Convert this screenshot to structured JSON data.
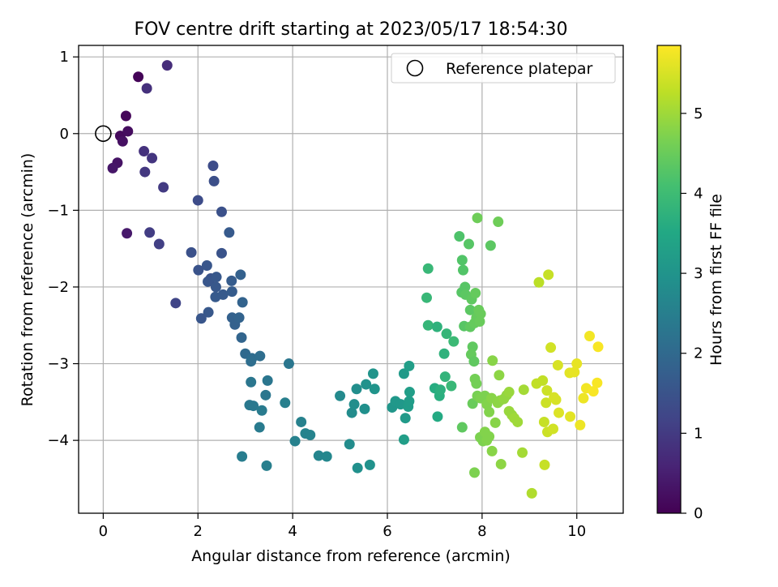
{
  "chart_data": {
    "type": "scatter",
    "title": "FOV centre drift starting at 2023/05/17 18:54:30",
    "xlabel": "Angular distance from reference (arcmin)",
    "ylabel": "Rotation from reference (arcmin)",
    "xlim": [
      -0.52,
      10.98
    ],
    "ylim": [
      -4.95,
      1.15
    ],
    "x_ticks": [
      0,
      2,
      4,
      6,
      8,
      10
    ],
    "y_ticks": [
      1,
      0,
      -1,
      -2,
      -3,
      -4
    ],
    "grid": true,
    "legend": {
      "placement": "upper right",
      "entries": [
        "Reference platepar"
      ]
    },
    "reference_point": {
      "x": 0,
      "y": 0,
      "label": "Reference platepar"
    },
    "colorbar": {
      "label": "Hours from first FF file",
      "colormap": "viridis",
      "range": [
        0,
        5.85
      ],
      "ticks": [
        0,
        1,
        2,
        3,
        4,
        5
      ]
    },
    "series": [
      {
        "color_value_units": "hours",
        "points": [
          {
            "x": 0.74,
            "y": 0.74,
            "c": 0.05
          },
          {
            "x": 0.48,
            "y": 0.23,
            "c": 0.1
          },
          {
            "x": 0.36,
            "y": -0.03,
            "c": 0.15
          },
          {
            "x": 0.52,
            "y": 0.03,
            "c": 0.2
          },
          {
            "x": 0.41,
            "y": -0.1,
            "c": 0.25
          },
          {
            "x": 0.3,
            "y": -0.38,
            "c": 0.3
          },
          {
            "x": 0.2,
            "y": -0.45,
            "c": 0.35
          },
          {
            "x": 0.5,
            "y": -1.3,
            "c": 0.4
          },
          {
            "x": 1.35,
            "y": 0.89,
            "c": 0.75
          },
          {
            "x": 0.92,
            "y": 0.59,
            "c": 0.8
          },
          {
            "x": 0.86,
            "y": -0.23,
            "c": 0.85
          },
          {
            "x": 1.03,
            "y": -0.32,
            "c": 0.9
          },
          {
            "x": 0.88,
            "y": -0.5,
            "c": 0.95
          },
          {
            "x": 1.27,
            "y": -0.7,
            "c": 1.0
          },
          {
            "x": 0.98,
            "y": -1.29,
            "c": 1.05
          },
          {
            "x": 1.18,
            "y": -1.44,
            "c": 1.1
          },
          {
            "x": 1.53,
            "y": -2.21,
            "c": 1.2
          },
          {
            "x": 2.32,
            "y": -0.42,
            "c": 1.35
          },
          {
            "x": 2.34,
            "y": -0.62,
            "c": 1.4
          },
          {
            "x": 2.0,
            "y": -0.87,
            "c": 1.35
          },
          {
            "x": 2.5,
            "y": -1.02,
            "c": 1.45
          },
          {
            "x": 1.86,
            "y": -1.55,
            "c": 1.45
          },
          {
            "x": 2.5,
            "y": -1.56,
            "c": 1.5
          },
          {
            "x": 2.66,
            "y": -1.29,
            "c": 1.65
          },
          {
            "x": 2.01,
            "y": -1.78,
            "c": 1.5
          },
          {
            "x": 2.19,
            "y": -1.72,
            "c": 1.55
          },
          {
            "x": 2.27,
            "y": -1.89,
            "c": 1.5
          },
          {
            "x": 2.21,
            "y": -1.93,
            "c": 1.55
          },
          {
            "x": 2.39,
            "y": -1.87,
            "c": 1.6
          },
          {
            "x": 2.38,
            "y": -2.0,
            "c": 1.6
          },
          {
            "x": 2.37,
            "y": -2.13,
            "c": 1.65
          },
          {
            "x": 2.53,
            "y": -2.1,
            "c": 1.65
          },
          {
            "x": 2.71,
            "y": -1.92,
            "c": 1.7
          },
          {
            "x": 2.72,
            "y": -2.06,
            "c": 1.7
          },
          {
            "x": 2.22,
            "y": -2.33,
            "c": 1.6
          },
          {
            "x": 2.07,
            "y": -2.41,
            "c": 1.55
          },
          {
            "x": 2.72,
            "y": -2.4,
            "c": 1.8
          },
          {
            "x": 2.78,
            "y": -2.49,
            "c": 1.8
          },
          {
            "x": 2.9,
            "y": -1.84,
            "c": 1.8
          },
          {
            "x": 2.94,
            "y": -2.2,
            "c": 1.85
          },
          {
            "x": 2.87,
            "y": -2.4,
            "c": 1.85
          },
          {
            "x": 2.92,
            "y": -2.66,
            "c": 1.9
          },
          {
            "x": 3.0,
            "y": -2.87,
            "c": 2.0
          },
          {
            "x": 3.14,
            "y": -2.93,
            "c": 2.05
          },
          {
            "x": 3.31,
            "y": -2.9,
            "c": 2.1
          },
          {
            "x": 3.12,
            "y": -2.97,
            "c": 2.1
          },
          {
            "x": 3.47,
            "y": -3.22,
            "c": 2.3
          },
          {
            "x": 3.12,
            "y": -3.24,
            "c": 2.3
          },
          {
            "x": 3.43,
            "y": -3.41,
            "c": 2.3
          },
          {
            "x": 3.09,
            "y": -3.54,
            "c": 2.35
          },
          {
            "x": 3.17,
            "y": -3.55,
            "c": 2.35
          },
          {
            "x": 3.35,
            "y": -3.61,
            "c": 2.4
          },
          {
            "x": 3.3,
            "y": -3.83,
            "c": 2.4
          },
          {
            "x": 3.92,
            "y": -3.0,
            "c": 2.3
          },
          {
            "x": 3.84,
            "y": -3.51,
            "c": 2.5
          },
          {
            "x": 2.93,
            "y": -4.21,
            "c": 2.45
          },
          {
            "x": 3.45,
            "y": -4.33,
            "c": 2.5
          },
          {
            "x": 4.05,
            "y": -4.01,
            "c": 2.55
          },
          {
            "x": 4.18,
            "y": -3.76,
            "c": 2.55
          },
          {
            "x": 4.27,
            "y": -3.91,
            "c": 2.6
          },
          {
            "x": 4.37,
            "y": -3.93,
            "c": 2.6
          },
          {
            "x": 4.55,
            "y": -4.2,
            "c": 2.65
          },
          {
            "x": 4.72,
            "y": -4.21,
            "c": 2.7
          },
          {
            "x": 5.0,
            "y": -3.42,
            "c": 2.75
          },
          {
            "x": 5.2,
            "y": -4.05,
            "c": 2.8
          },
          {
            "x": 5.25,
            "y": -3.64,
            "c": 2.8
          },
          {
            "x": 5.3,
            "y": -3.53,
            "c": 2.85
          },
          {
            "x": 5.35,
            "y": -3.33,
            "c": 2.85
          },
          {
            "x": 5.37,
            "y": -4.36,
            "c": 2.9
          },
          {
            "x": 5.52,
            "y": -3.59,
            "c": 2.9
          },
          {
            "x": 5.55,
            "y": -3.27,
            "c": 2.95
          },
          {
            "x": 5.63,
            "y": -4.32,
            "c": 2.95
          },
          {
            "x": 5.7,
            "y": -3.13,
            "c": 3.0
          },
          {
            "x": 5.73,
            "y": -3.33,
            "c": 3.0
          },
          {
            "x": 6.1,
            "y": -3.57,
            "c": 3.05
          },
          {
            "x": 6.17,
            "y": -3.49,
            "c": 3.1
          },
          {
            "x": 6.28,
            "y": -3.53,
            "c": 3.1
          },
          {
            "x": 6.35,
            "y": -3.13,
            "c": 3.15
          },
          {
            "x": 6.38,
            "y": -3.71,
            "c": 3.15
          },
          {
            "x": 6.44,
            "y": -3.56,
            "c": 3.2
          },
          {
            "x": 6.46,
            "y": -3.49,
            "c": 3.2
          },
          {
            "x": 6.47,
            "y": -3.37,
            "c": 3.25
          },
          {
            "x": 6.46,
            "y": -3.03,
            "c": 3.25
          },
          {
            "x": 6.35,
            "y": -3.99,
            "c": 3.25
          },
          {
            "x": 6.83,
            "y": -2.14,
            "c": 3.9
          },
          {
            "x": 6.86,
            "y": -1.76,
            "c": 3.9
          },
          {
            "x": 6.86,
            "y": -2.5,
            "c": 3.85
          },
          {
            "x": 7.05,
            "y": -2.52,
            "c": 3.75
          },
          {
            "x": 7.0,
            "y": -3.32,
            "c": 3.6
          },
          {
            "x": 7.06,
            "y": -3.69,
            "c": 3.55
          },
          {
            "x": 7.1,
            "y": -3.42,
            "c": 3.65
          },
          {
            "x": 7.12,
            "y": -3.34,
            "c": 3.7
          },
          {
            "x": 7.2,
            "y": -2.87,
            "c": 3.75
          },
          {
            "x": 7.22,
            "y": -3.17,
            "c": 3.8
          },
          {
            "x": 7.25,
            "y": -2.61,
            "c": 3.85
          },
          {
            "x": 7.35,
            "y": -3.29,
            "c": 3.9
          },
          {
            "x": 7.4,
            "y": -2.71,
            "c": 3.95
          },
          {
            "x": 7.52,
            "y": -1.34,
            "c": 4.2
          },
          {
            "x": 7.58,
            "y": -1.65,
            "c": 4.25
          },
          {
            "x": 7.6,
            "y": -1.78,
            "c": 4.25
          },
          {
            "x": 7.57,
            "y": -2.07,
            "c": 4.3
          },
          {
            "x": 7.64,
            "y": -2.0,
            "c": 4.3
          },
          {
            "x": 7.65,
            "y": -2.1,
            "c": 4.35
          },
          {
            "x": 7.62,
            "y": -2.51,
            "c": 4.3
          },
          {
            "x": 7.72,
            "y": -1.44,
            "c": 4.3
          },
          {
            "x": 7.75,
            "y": -2.3,
            "c": 4.35
          },
          {
            "x": 7.75,
            "y": -2.52,
            "c": 4.4
          },
          {
            "x": 7.78,
            "y": -2.16,
            "c": 4.4
          },
          {
            "x": 7.8,
            "y": -2.78,
            "c": 4.4
          },
          {
            "x": 7.84,
            "y": -2.47,
            "c": 4.45
          },
          {
            "x": 7.86,
            "y": -2.08,
            "c": 4.45
          },
          {
            "x": 7.88,
            "y": -2.4,
            "c": 4.45
          },
          {
            "x": 7.93,
            "y": -2.3,
            "c": 4.5
          },
          {
            "x": 7.95,
            "y": -2.45,
            "c": 4.5
          },
          {
            "x": 7.97,
            "y": -2.35,
            "c": 4.5
          },
          {
            "x": 7.77,
            "y": -2.88,
            "c": 4.45
          },
          {
            "x": 7.83,
            "y": -2.97,
            "c": 4.4
          },
          {
            "x": 7.9,
            "y": -1.1,
            "c": 4.55
          },
          {
            "x": 8.18,
            "y": -1.46,
            "c": 4.35
          },
          {
            "x": 8.34,
            "y": -1.15,
            "c": 4.55
          },
          {
            "x": 7.58,
            "y": -3.83,
            "c": 4.4
          },
          {
            "x": 7.8,
            "y": -3.52,
            "c": 4.5
          },
          {
            "x": 7.85,
            "y": -3.2,
            "c": 4.6
          },
          {
            "x": 7.88,
            "y": -3.26,
            "c": 4.6
          },
          {
            "x": 7.9,
            "y": -3.42,
            "c": 4.65
          },
          {
            "x": 7.97,
            "y": -3.45,
            "c": 4.7
          },
          {
            "x": 8.0,
            "y": -3.44,
            "c": 4.7
          },
          {
            "x": 8.06,
            "y": -3.42,
            "c": 4.7
          },
          {
            "x": 8.1,
            "y": -3.53,
            "c": 4.75
          },
          {
            "x": 8.15,
            "y": -3.63,
            "c": 4.75
          },
          {
            "x": 8.2,
            "y": -3.45,
            "c": 4.8
          },
          {
            "x": 8.22,
            "y": -2.96,
            "c": 4.8
          },
          {
            "x": 8.28,
            "y": -3.77,
            "c": 4.8
          },
          {
            "x": 8.33,
            "y": -3.51,
            "c": 4.85
          },
          {
            "x": 8.36,
            "y": -3.15,
            "c": 4.85
          },
          {
            "x": 8.38,
            "y": -3.48,
            "c": 4.85
          },
          {
            "x": 8.46,
            "y": -3.46,
            "c": 4.9
          },
          {
            "x": 8.52,
            "y": -3.41,
            "c": 4.9
          },
          {
            "x": 8.57,
            "y": -3.37,
            "c": 4.95
          },
          {
            "x": 8.57,
            "y": -3.62,
            "c": 4.95
          },
          {
            "x": 8.63,
            "y": -3.67,
            "c": 4.95
          },
          {
            "x": 8.68,
            "y": -3.71,
            "c": 5.0
          },
          {
            "x": 8.75,
            "y": -3.76,
            "c": 5.0
          },
          {
            "x": 7.96,
            "y": -3.96,
            "c": 4.7
          },
          {
            "x": 8.02,
            "y": -4.01,
            "c": 4.7
          },
          {
            "x": 8.06,
            "y": -3.89,
            "c": 4.75
          },
          {
            "x": 8.1,
            "y": -4.0,
            "c": 4.75
          },
          {
            "x": 8.15,
            "y": -3.95,
            "c": 4.75
          },
          {
            "x": 8.21,
            "y": -4.14,
            "c": 4.8
          },
          {
            "x": 8.4,
            "y": -4.31,
            "c": 4.85
          },
          {
            "x": 7.84,
            "y": -4.42,
            "c": 4.7
          },
          {
            "x": 8.85,
            "y": -4.16,
            "c": 5.05
          },
          {
            "x": 8.88,
            "y": -3.34,
            "c": 5.05
          },
          {
            "x": 9.05,
            "y": -4.69,
            "c": 5.15
          },
          {
            "x": 9.15,
            "y": -3.26,
            "c": 5.3
          },
          {
            "x": 9.2,
            "y": -1.94,
            "c": 5.25
          },
          {
            "x": 9.31,
            "y": -3.76,
            "c": 5.35
          },
          {
            "x": 9.28,
            "y": -3.22,
            "c": 5.3
          },
          {
            "x": 9.32,
            "y": -4.32,
            "c": 5.35
          },
          {
            "x": 9.35,
            "y": -3.51,
            "c": 5.4
          },
          {
            "x": 9.37,
            "y": -3.35,
            "c": 5.4
          },
          {
            "x": 9.38,
            "y": -3.89,
            "c": 5.4
          },
          {
            "x": 9.4,
            "y": -1.84,
            "c": 5.35
          },
          {
            "x": 9.45,
            "y": -2.79,
            "c": 5.45
          },
          {
            "x": 9.5,
            "y": -3.85,
            "c": 5.45
          },
          {
            "x": 9.52,
            "y": -3.44,
            "c": 5.5
          },
          {
            "x": 9.56,
            "y": -3.47,
            "c": 5.5
          },
          {
            "x": 9.6,
            "y": -3.02,
            "c": 5.5
          },
          {
            "x": 9.62,
            "y": -3.64,
            "c": 5.55
          },
          {
            "x": 9.85,
            "y": -3.12,
            "c": 5.6
          },
          {
            "x": 9.86,
            "y": -3.69,
            "c": 5.6
          },
          {
            "x": 9.95,
            "y": -3.11,
            "c": 5.65
          },
          {
            "x": 10.0,
            "y": -3.0,
            "c": 5.65
          },
          {
            "x": 10.07,
            "y": -3.8,
            "c": 5.7
          },
          {
            "x": 10.14,
            "y": -3.45,
            "c": 5.7
          },
          {
            "x": 10.2,
            "y": -3.32,
            "c": 5.75
          },
          {
            "x": 10.27,
            "y": -2.64,
            "c": 5.75
          },
          {
            "x": 10.35,
            "y": -3.36,
            "c": 5.8
          },
          {
            "x": 10.43,
            "y": -3.25,
            "c": 5.8
          },
          {
            "x": 10.45,
            "y": -2.78,
            "c": 5.8
          }
        ]
      }
    ]
  }
}
